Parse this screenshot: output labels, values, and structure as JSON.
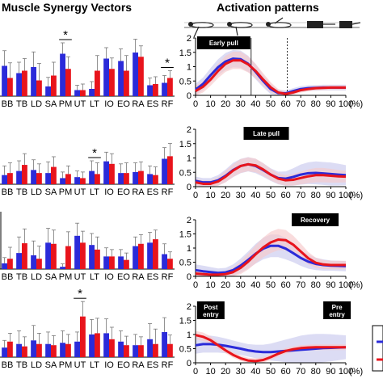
{
  "headers": {
    "left": "Muscle Synergy Vectors",
    "right": "Activation patterns"
  },
  "colors": {
    "blue": "#2b2bd9",
    "red": "#e8141c",
    "blue_band": "#c9c9ee",
    "red_band": "#f6c9cb",
    "tag_bg": "#000000",
    "tag_text": "#ffffff"
  },
  "chart_data": [
    {
      "type": "bar",
      "panel": 1,
      "categories": [
        "BB",
        "TB",
        "LD",
        "SA",
        "PM",
        "UT",
        "LT",
        "IO",
        "EO",
        "RA",
        "ES",
        "RF"
      ],
      "series": [
        {
          "color": "blue",
          "values": [
            0.5,
            0.38,
            0.48,
            0.16,
            0.7,
            0.1,
            0.12,
            0.62,
            0.58,
            0.72,
            0.18,
            0.22
          ],
          "err": [
            0.25,
            0.18,
            0.25,
            0.15,
            0.18,
            0.08,
            0.12,
            0.18,
            0.2,
            0.22,
            0.12,
            0.12
          ]
        },
        {
          "color": "red",
          "values": [
            0.3,
            0.42,
            0.26,
            0.34,
            0.45,
            0.1,
            0.42,
            0.45,
            0.42,
            0.65,
            0.2,
            0.3
          ],
          "err": [
            0.25,
            0.2,
            0.28,
            0.22,
            0.2,
            0.1,
            0.25,
            0.18,
            0.25,
            0.18,
            0.12,
            0.12
          ]
        }
      ],
      "significance": [
        {
          "category": "PM",
          "label": "*"
        },
        {
          "category": "RF",
          "label": "*"
        }
      ]
    },
    {
      "type": "bar",
      "panel": 2,
      "categories": [
        "BB",
        "TB",
        "LD",
        "SA",
        "PM",
        "UT",
        "LT",
        "IO",
        "EO",
        "RA",
        "ES",
        "RF"
      ],
      "series": [
        {
          "color": "blue",
          "values": [
            0.18,
            0.26,
            0.28,
            0.22,
            0.12,
            0.14,
            0.26,
            0.45,
            0.22,
            0.24,
            0.2,
            0.5
          ],
          "err": [
            0.18,
            0.2,
            0.2,
            0.22,
            0.12,
            0.12,
            0.2,
            0.18,
            0.18,
            0.18,
            0.16,
            0.22
          ]
        },
        {
          "color": "red",
          "values": [
            0.22,
            0.38,
            0.22,
            0.34,
            0.2,
            0.12,
            0.2,
            0.4,
            0.22,
            0.26,
            0.18,
            0.55
          ],
          "err": [
            0.2,
            0.22,
            0.18,
            0.2,
            0.16,
            0.12,
            0.22,
            0.2,
            0.2,
            0.18,
            0.16,
            0.25
          ]
        }
      ],
      "significance": [
        {
          "category": "LT",
          "label": "*"
        }
      ]
    },
    {
      "type": "bar",
      "panel": 3,
      "categories": [
        "BB",
        "TB",
        "LD",
        "SA",
        "PM",
        "UT",
        "LT",
        "IO",
        "EO",
        "RA",
        "ES",
        "RF"
      ],
      "series": [
        {
          "color": "blue",
          "values": [
            0.1,
            0.28,
            0.24,
            0.46,
            0.04,
            0.58,
            0.42,
            0.22,
            0.22,
            0.4,
            0.46,
            0.26
          ],
          "err": [
            0.1,
            0.28,
            0.25,
            0.25,
            0.05,
            0.22,
            0.2,
            0.15,
            0.12,
            0.16,
            0.18,
            0.18
          ]
        },
        {
          "color": "red",
          "values": [
            0.18,
            0.45,
            0.18,
            0.44,
            0.4,
            0.46,
            0.34,
            0.22,
            0.16,
            0.44,
            0.52,
            0.18
          ],
          "err": [
            0.2,
            0.25,
            0.22,
            0.24,
            0.25,
            0.2,
            0.22,
            0.12,
            0.12,
            0.16,
            0.16,
            0.12
          ]
        }
      ],
      "significance": []
    },
    {
      "type": "bar",
      "panel": 4,
      "categories": [
        "BB",
        "TB",
        "LD",
        "SA",
        "PM",
        "UT",
        "LT",
        "IO",
        "EO",
        "RA",
        "ES",
        "RF"
      ],
      "series": [
        {
          "color": "blue",
          "values": [
            0.16,
            0.22,
            0.28,
            0.22,
            0.24,
            0.26,
            0.38,
            0.4,
            0.26,
            0.2,
            0.3,
            0.42
          ],
          "err": [
            0.12,
            0.22,
            0.25,
            0.2,
            0.2,
            0.16,
            0.25,
            0.24,
            0.18,
            0.18,
            0.26,
            0.24
          ]
        },
        {
          "color": "red",
          "values": [
            0.26,
            0.18,
            0.22,
            0.2,
            0.22,
            0.68,
            0.4,
            0.3,
            0.2,
            0.2,
            0.22,
            0.22
          ],
          "err": [
            0.14,
            0.16,
            0.18,
            0.16,
            0.16,
            0.25,
            0.25,
            0.2,
            0.15,
            0.14,
            0.25,
            0.15
          ]
        }
      ],
      "significance": [
        {
          "category": "UT",
          "label": "*"
        }
      ]
    },
    {
      "type": "line",
      "panel": 1,
      "tag": "Early pull",
      "x_ticks": [
        0,
        10,
        20,
        30,
        40,
        50,
        60,
        70,
        80,
        90,
        100
      ],
      "x_unit": "(%)",
      "y_ticks": [
        0,
        0.5,
        1,
        1.5,
        2
      ],
      "ylim": [
        0,
        2
      ],
      "xlim": [
        0,
        100
      ],
      "vlines": [
        37,
        61
      ],
      "x": [
        0,
        5,
        10,
        15,
        20,
        25,
        30,
        35,
        40,
        45,
        50,
        55,
        60,
        65,
        70,
        75,
        80,
        85,
        90,
        95,
        100
      ],
      "series": [
        {
          "color": "blue",
          "values": [
            0.2,
            0.4,
            0.7,
            0.98,
            1.18,
            1.28,
            1.26,
            1.1,
            0.82,
            0.5,
            0.22,
            0.08,
            0.07,
            0.15,
            0.22,
            0.25,
            0.26,
            0.27,
            0.27,
            0.27,
            0.27
          ],
          "band": [
            0.2,
            0.22,
            0.25,
            0.28,
            0.3,
            0.3,
            0.3,
            0.28,
            0.26,
            0.22,
            0.18,
            0.12,
            0.1,
            0.1,
            0.1,
            0.1,
            0.1,
            0.1,
            0.1,
            0.1,
            0.1
          ]
        },
        {
          "color": "red",
          "values": [
            0.15,
            0.3,
            0.55,
            0.85,
            1.1,
            1.22,
            1.22,
            1.08,
            0.85,
            0.55,
            0.28,
            0.1,
            0.05,
            0.1,
            0.18,
            0.22,
            0.25,
            0.26,
            0.27,
            0.27,
            0.27
          ],
          "band": [
            0.18,
            0.2,
            0.22,
            0.25,
            0.28,
            0.3,
            0.3,
            0.28,
            0.25,
            0.22,
            0.18,
            0.12,
            0.08,
            0.08,
            0.08,
            0.08,
            0.08,
            0.08,
            0.08,
            0.08,
            0.08
          ]
        }
      ]
    },
    {
      "type": "line",
      "panel": 2,
      "tag": "Late pull",
      "x_ticks": [
        0,
        10,
        20,
        30,
        40,
        50,
        60,
        70,
        80,
        90,
        100
      ],
      "x_unit": "(%)",
      "y_ticks": [
        0,
        0.5,
        1,
        1.5,
        2
      ],
      "ylim": [
        0,
        2
      ],
      "xlim": [
        0,
        100
      ],
      "vlines": [],
      "x": [
        0,
        5,
        10,
        15,
        20,
        25,
        30,
        35,
        40,
        45,
        50,
        55,
        60,
        65,
        70,
        75,
        80,
        85,
        90,
        95,
        100
      ],
      "series": [
        {
          "color": "blue",
          "values": [
            0.2,
            0.15,
            0.15,
            0.22,
            0.38,
            0.58,
            0.72,
            0.78,
            0.72,
            0.58,
            0.42,
            0.3,
            0.28,
            0.34,
            0.42,
            0.47,
            0.48,
            0.46,
            0.44,
            0.42,
            0.4
          ],
          "band": [
            0.15,
            0.15,
            0.15,
            0.18,
            0.22,
            0.25,
            0.25,
            0.25,
            0.25,
            0.24,
            0.22,
            0.22,
            0.25,
            0.3,
            0.35,
            0.38,
            0.4,
            0.4,
            0.4,
            0.38,
            0.35
          ]
        },
        {
          "color": "red",
          "values": [
            0.15,
            0.1,
            0.1,
            0.18,
            0.35,
            0.56,
            0.72,
            0.78,
            0.74,
            0.6,
            0.42,
            0.28,
            0.22,
            0.24,
            0.3,
            0.36,
            0.4,
            0.4,
            0.38,
            0.36,
            0.35
          ],
          "band": [
            0.12,
            0.12,
            0.12,
            0.15,
            0.2,
            0.22,
            0.24,
            0.24,
            0.24,
            0.22,
            0.2,
            0.18,
            0.18,
            0.2,
            0.22,
            0.24,
            0.25,
            0.25,
            0.24,
            0.22,
            0.2
          ]
        }
      ]
    },
    {
      "type": "line",
      "panel": 3,
      "tag": "Recovery",
      "x_ticks": [
        0,
        10,
        20,
        30,
        40,
        50,
        60,
        70,
        80,
        90,
        100
      ],
      "x_unit": "(%)",
      "y_ticks": [
        0,
        0.5,
        1,
        1.5,
        2
      ],
      "ylim": [
        0,
        2
      ],
      "xlim": [
        0,
        100
      ],
      "vlines": [],
      "x": [
        0,
        5,
        10,
        15,
        20,
        25,
        30,
        35,
        40,
        45,
        50,
        55,
        60,
        65,
        70,
        75,
        80,
        85,
        90,
        95,
        100
      ],
      "series": [
        {
          "color": "blue",
          "values": [
            0.22,
            0.18,
            0.15,
            0.12,
            0.14,
            0.22,
            0.38,
            0.58,
            0.8,
            0.98,
            1.08,
            1.08,
            0.98,
            0.82,
            0.65,
            0.52,
            0.44,
            0.4,
            0.38,
            0.37,
            0.36
          ],
          "band": [
            0.2,
            0.2,
            0.18,
            0.16,
            0.16,
            0.2,
            0.25,
            0.3,
            0.35,
            0.38,
            0.4,
            0.4,
            0.38,
            0.32,
            0.28,
            0.25,
            0.22,
            0.2,
            0.18,
            0.18,
            0.18
          ]
        },
        {
          "color": "red",
          "values": [
            0.1,
            0.08,
            0.06,
            0.06,
            0.08,
            0.15,
            0.3,
            0.52,
            0.78,
            1.02,
            1.2,
            1.3,
            1.28,
            1.12,
            0.88,
            0.64,
            0.48,
            0.42,
            0.4,
            0.4,
            0.4
          ],
          "band": [
            0.1,
            0.1,
            0.1,
            0.1,
            0.12,
            0.16,
            0.22,
            0.28,
            0.32,
            0.35,
            0.38,
            0.38,
            0.36,
            0.32,
            0.28,
            0.22,
            0.18,
            0.16,
            0.15,
            0.15,
            0.15
          ]
        }
      ]
    },
    {
      "type": "line",
      "panel": 4,
      "tags": [
        "Post entry",
        "Pre entry"
      ],
      "x_ticks": [
        0,
        10,
        20,
        30,
        40,
        50,
        60,
        70,
        80,
        90,
        100
      ],
      "x_unit": "(%)",
      "y_ticks": [
        0,
        0.5,
        1,
        1.5,
        2
      ],
      "ylim": [
        0,
        2
      ],
      "xlim": [
        0,
        100
      ],
      "vlines": [],
      "x": [
        0,
        5,
        10,
        15,
        20,
        25,
        30,
        35,
        40,
        45,
        50,
        55,
        60,
        65,
        70,
        75,
        80,
        85,
        90,
        95,
        100
      ],
      "series": [
        {
          "color": "blue",
          "values": [
            0.62,
            0.66,
            0.66,
            0.64,
            0.6,
            0.55,
            0.5,
            0.44,
            0.4,
            0.38,
            0.38,
            0.4,
            0.42,
            0.44,
            0.46,
            0.48,
            0.5,
            0.52,
            0.53,
            0.54,
            0.55
          ],
          "band": [
            0.3,
            0.3,
            0.3,
            0.28,
            0.26,
            0.24,
            0.22,
            0.22,
            0.24,
            0.26,
            0.3,
            0.35,
            0.4,
            0.45,
            0.5,
            0.52,
            0.52,
            0.5,
            0.48,
            0.45,
            0.42
          ]
        },
        {
          "color": "red",
          "values": [
            0.98,
            0.92,
            0.8,
            0.62,
            0.44,
            0.28,
            0.16,
            0.08,
            0.06,
            0.1,
            0.2,
            0.32,
            0.42,
            0.48,
            0.52,
            0.54,
            0.55,
            0.55,
            0.55,
            0.55,
            0.55
          ],
          "band": [
            0.15,
            0.15,
            0.14,
            0.12,
            0.1,
            0.1,
            0.1,
            0.1,
            0.1,
            0.1,
            0.1,
            0.1,
            0.1,
            0.1,
            0.1,
            0.1,
            0.1,
            0.1,
            0.1,
            0.1,
            0.1
          ]
        }
      ]
    }
  ]
}
